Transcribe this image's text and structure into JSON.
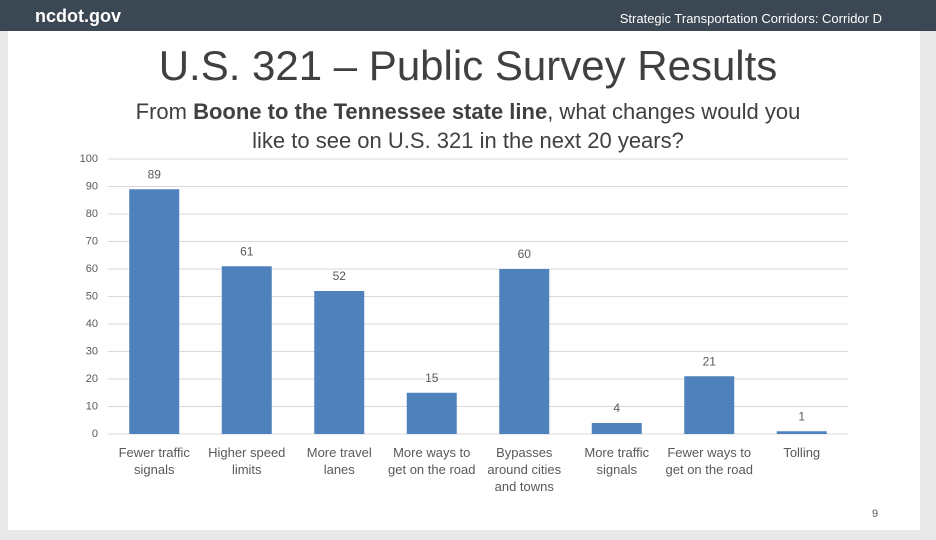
{
  "header": {
    "site": "ncdot.gov",
    "section": "Strategic Transportation Corridors: Corridor D"
  },
  "page_number": "9",
  "chart_data": {
    "type": "bar",
    "title": "U.S. 321 – Public Survey Results",
    "subtitle": {
      "before": "From",
      "bold": "Boone to the Tennessee state line",
      "after": ", what changes would you like to see on U.S. 321 in the next 20 years?"
    },
    "categories": [
      "Fewer traffic signals",
      "Higher speed limits",
      "More travel lanes",
      "More ways to get on the road",
      "Bypasses around cities and towns",
      "More traffic signals",
      "Fewer ways to get on the road",
      "Tolling"
    ],
    "values": [
      89,
      61,
      52,
      15,
      60,
      4,
      21,
      1
    ],
    "color": "#4f81bd",
    "ylim": [
      0,
      100
    ],
    "yticks": [
      0,
      10,
      20,
      30,
      40,
      50,
      60,
      70,
      80,
      90,
      100
    ],
    "grid": true
  }
}
